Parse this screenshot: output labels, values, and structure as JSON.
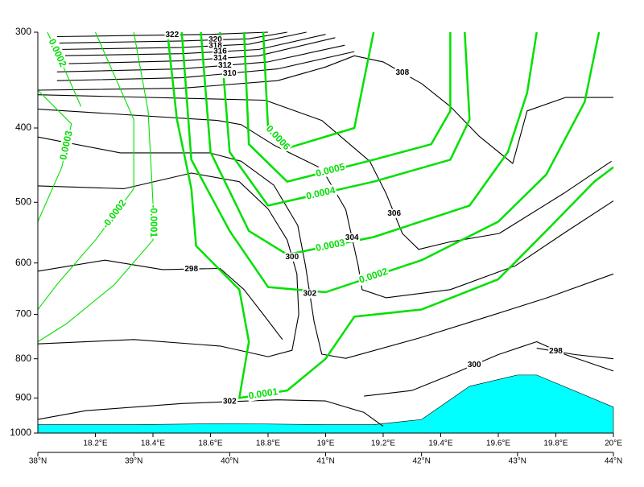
{
  "chart_data": {
    "type": "contour",
    "xlim": [
      38,
      44
    ],
    "xticks": [
      {
        "value": 38,
        "label": "38°N"
      },
      {
        "value": 39,
        "label": "39°N"
      },
      {
        "value": 40,
        "label": "40°N"
      },
      {
        "value": 41,
        "label": "41°N"
      },
      {
        "value": 42,
        "label": "42°N"
      },
      {
        "value": 43,
        "label": "43°N"
      },
      {
        "value": 44,
        "label": "44°N"
      }
    ],
    "x2lim": [
      18,
      20
    ],
    "x2ticks": [
      {
        "value": 18.2,
        "label": "18.2°E"
      },
      {
        "value": 18.4,
        "label": "18.4°E"
      },
      {
        "value": 18.6,
        "label": "18.6°E"
      },
      {
        "value": 18.8,
        "label": "18.8°E"
      },
      {
        "value": 19,
        "label": "19°E"
      },
      {
        "value": 19.2,
        "label": "19.2°E"
      },
      {
        "value": 19.4,
        "label": "19.4°E"
      },
      {
        "value": 19.6,
        "label": "19.6°E"
      },
      {
        "value": 19.8,
        "label": "19.8°E"
      },
      {
        "value": 20,
        "label": "20°E"
      }
    ],
    "ylim": [
      300,
      1000
    ],
    "ylog": true,
    "y_reversed": true,
    "yticks": [
      300,
      400,
      500,
      600,
      700,
      800,
      900,
      1000
    ],
    "terrain": {
      "color": "#00ffff",
      "x": [
        38,
        39,
        40,
        41,
        41.5,
        42.0,
        42.5,
        43.0,
        43.2,
        44
      ],
      "values": [
        975,
        975,
        972,
        975,
        975,
        960,
        869,
        840,
        840,
        925
      ]
    },
    "contours": [
      {
        "level": 322,
        "color": "#000000",
        "thick": false,
        "x": [
          38.2,
          39.0,
          39.8,
          40.4
        ],
        "values": [
          304,
          303,
          302,
          300
        ]
      },
      {
        "level": 320,
        "color": "#000000",
        "thick": false,
        "x": [
          38.2,
          39.5,
          40.2,
          40.6
        ],
        "values": [
          310,
          308,
          306,
          300
        ]
      },
      {
        "level": 318,
        "color": "#000000",
        "thick": false,
        "x": [
          38.2,
          39.5,
          40.2,
          40.8
        ],
        "values": [
          316,
          314,
          311,
          300
        ]
      },
      {
        "level": 316,
        "color": "#000000",
        "thick": false,
        "x": [
          38.2,
          39.5,
          40.3,
          41.0
        ],
        "values": [
          322,
          320,
          316,
          302
        ]
      },
      {
        "level": 314,
        "color": "#000000",
        "thick": false,
        "x": [
          38.2,
          39.5,
          40.3,
          41.1
        ],
        "values": [
          330,
          327,
          322,
          305
        ]
      },
      {
        "level": 312,
        "color": "#000000",
        "thick": false,
        "x": [
          38.2,
          39.5,
          40.4,
          41.2
        ],
        "values": [
          338,
          335,
          328,
          312
        ]
      },
      {
        "level": 310,
        "color": "#000000",
        "thick": false,
        "x": [
          38.2,
          39.5,
          40.5,
          41.3
        ],
        "values": [
          347,
          344,
          335,
          318
        ]
      },
      {
        "level": 308,
        "color": "#000000",
        "thick": false,
        "x": [
          38,
          39.5,
          40.5,
          41.0,
          41.3,
          41.6,
          42.0,
          42.3,
          42.6,
          42.95,
          43.1,
          43.5,
          44
        ],
        "values": [
          357,
          355,
          347,
          333,
          322,
          328,
          350,
          375,
          410,
          445,
          380,
          365,
          365
        ]
      },
      {
        "level": 306,
        "color": "#000000",
        "thick": false,
        "x": [
          38,
          40.37,
          40.96,
          41.46,
          41.63,
          41.8,
          41.97,
          42.3,
          42.81,
          43.48,
          43.98
        ],
        "values": [
          362,
          368,
          391,
          442,
          487,
          549,
          576,
          563,
          549,
          487,
          442
        ]
      },
      {
        "level": 304,
        "color": "#000000",
        "thick": false,
        "x": [
          38,
          39.87,
          40.12,
          40.46,
          40.96,
          41.21,
          41.34,
          41.38,
          41.63,
          42.3,
          42.98,
          43.48,
          44
        ],
        "values": [
          378,
          391,
          396,
          421,
          452,
          511,
          605,
          650,
          666,
          650,
          605,
          549,
          498
        ]
      },
      {
        "level": 302,
        "color": "#000000",
        "thick": false,
        "x": [
          38,
          38.86,
          39.79,
          40.12,
          40.46,
          40.71,
          40.79,
          40.88,
          40.96,
          41.21,
          41.97,
          42.64,
          43.31,
          44
        ],
        "values": [
          411,
          431,
          431,
          442,
          475,
          536,
          605,
          716,
          789,
          799,
          752,
          708,
          666,
          620
        ]
      },
      {
        "level": 300,
        "color": "#000000",
        "thick": false,
        "x": [
          38,
          38.9,
          39.6,
          40.1,
          40.4,
          40.6,
          40.7,
          40.72,
          40.65,
          40.4,
          39.9,
          39,
          38
        ],
        "values": [
          476,
          480,
          458,
          470,
          510,
          560,
          620,
          700,
          780,
          795,
          770,
          755,
          765
        ]
      },
      {
        "level": 298,
        "color": "#000000",
        "thick": false,
        "x": [
          38,
          38.7,
          39.3,
          39.9,
          40.15,
          40.35,
          40.55
        ],
        "values": [
          615,
          595,
          612,
          610,
          650,
          700,
          755
        ]
      },
      {
        "level": 302,
        "color": "#000000",
        "thick": false,
        "x": [
          38,
          38.5,
          39.5,
          40.5,
          41.0,
          41.4,
          41.6
        ],
        "values": [
          960,
          935,
          915,
          905,
          908,
          940,
          980
        ]
      },
      {
        "level": 300,
        "color": "#000000",
        "thick": false,
        "x": [
          41.4,
          41.9,
          42.3,
          42.8,
          43.2,
          43.5,
          44
        ],
        "values": [
          895,
          880,
          840,
          790,
          760,
          790,
          830
        ]
      },
      {
        "level": 298,
        "color": "#000000",
        "thick": false,
        "x": [
          43.2,
          43.6,
          44
        ],
        "values": [
          775,
          790,
          800
        ]
      },
      {
        "level": 0.0006,
        "color": "#00e000",
        "thick": true,
        "x": [
          40.35,
          40.4,
          40.6,
          41.3,
          41.5
        ],
        "values": [
          300,
          400,
          425,
          400,
          300
        ]
      },
      {
        "level": 0.0005,
        "color": "#00e000",
        "thick": true,
        "x": [
          40.15,
          40.2,
          40.6,
          41.5,
          42.1,
          42.3,
          42.3
        ],
        "values": [
          300,
          420,
          470,
          440,
          420,
          380,
          300
        ]
      },
      {
        "level": 0.0004,
        "color": "#00e000",
        "thick": true,
        "x": [
          39.9,
          40.0,
          40.4,
          41.5,
          42.3,
          42.5,
          42.45
        ],
        "values": [
          300,
          430,
          505,
          470,
          440,
          390,
          300
        ]
      },
      {
        "level": 0.0003,
        "color": "#00e000",
        "thick": true,
        "x": [
          39.7,
          39.8,
          40.2,
          40.6,
          41.5,
          42.5,
          42.9,
          43.1,
          43.2
        ],
        "values": [
          300,
          430,
          545,
          585,
          555,
          505,
          430,
          360,
          300
        ]
      },
      {
        "level": 0.0002,
        "color": "#00e000",
        "thick": true,
        "x": [
          39.5,
          39.6,
          40.0,
          40.4,
          41.0,
          42.0,
          42.8,
          43.3,
          43.7,
          43.85
        ],
        "values": [
          300,
          440,
          545,
          645,
          655,
          595,
          530,
          460,
          370,
          300
        ]
      },
      {
        "level": 0.0001,
        "color": "#00e000",
        "thick": true,
        "x": [
          39.35,
          39.45,
          39.6,
          39.65,
          40.1,
          40.2,
          40.1,
          40.6,
          41.0,
          41.3,
          42.0,
          42.8,
          43.3,
          43.8,
          44
        ],
        "values": [
          300,
          390,
          480,
          570,
          650,
          760,
          900,
          880,
          800,
          705,
          690,
          630,
          545,
          470,
          450
        ]
      },
      {
        "level": -0.0001,
        "color": "#00e000",
        "thick": false,
        "x": [
          39.0,
          39.15,
          39.2,
          39.2,
          38.8,
          38.3,
          38.0
        ],
        "values": [
          300,
          380,
          500,
          560,
          640,
          720,
          760
        ]
      },
      {
        "level": -0.0002,
        "color": "#00e000",
        "thick": false,
        "x": [
          38.6,
          39.0,
          39.0,
          38.6,
          38.2,
          38.0
        ],
        "values": [
          300,
          390,
          480,
          560,
          640,
          690
        ]
      },
      {
        "level": 0.0002,
        "color": "#00e000",
        "thick": false,
        "x": [
          38.1,
          38.3,
          38.45
        ],
        "values": [
          300,
          340,
          375
        ]
      },
      {
        "level": 0.0003,
        "color": "#00e000",
        "thick": false,
        "x": [
          38.0,
          38.35,
          38.25,
          38.0
        ],
        "values": [
          357,
          395,
          450,
          530
        ]
      }
    ]
  }
}
